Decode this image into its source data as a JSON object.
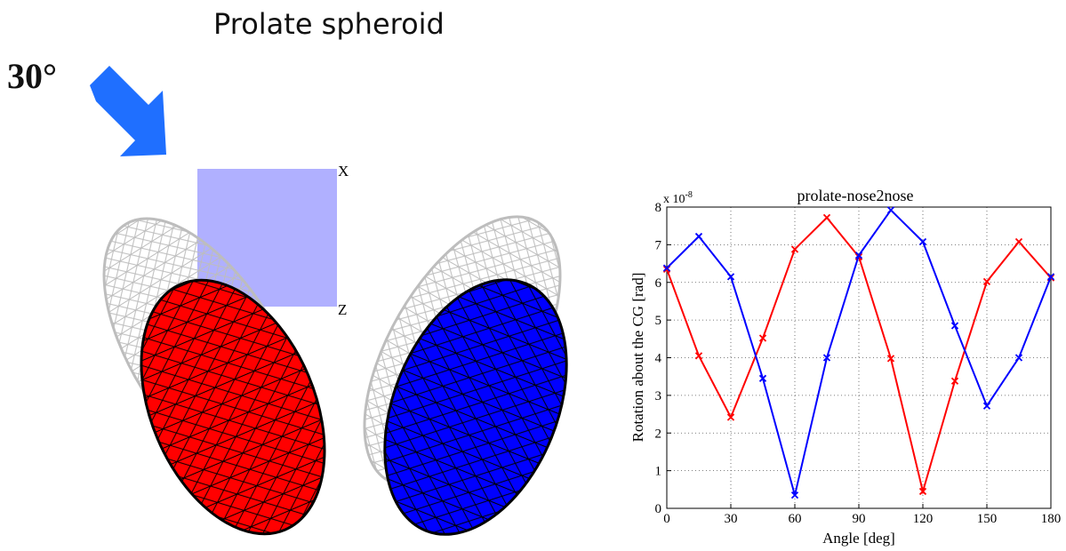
{
  "slide": {
    "title": "Prolate spheroid",
    "angle_label": "30°",
    "plane_label_x": "X",
    "plane_label_z": "Z"
  },
  "illustration": {
    "arrow_color": "#1f6fff",
    "plane_color": "#b0b0ff",
    "left_spheroid_color": "#ff0000",
    "right_spheroid_color": "#0000ff",
    "wireframe_color": "#c0c0c0",
    "mesh_color": "#000000"
  },
  "chart_data": {
    "type": "line",
    "title": "prolate-nose2nose",
    "xlabel": "Angle [deg]",
    "ylabel": "Rotation about the CG [rad]",
    "y_scale_label": "x 10",
    "y_scale_exponent": "-8",
    "xlim": [
      0,
      180
    ],
    "ylim": [
      0,
      8
    ],
    "xticks": [
      0,
      30,
      60,
      90,
      120,
      150,
      180
    ],
    "yticks": [
      0,
      1,
      2,
      3,
      4,
      5,
      6,
      7,
      8
    ],
    "grid": true,
    "x": [
      0,
      15,
      30,
      45,
      60,
      75,
      90,
      105,
      120,
      135,
      150,
      165,
      180
    ],
    "series": [
      {
        "color": "#ff0000",
        "marker": "x",
        "values": [
          6.35,
          4.05,
          2.42,
          4.52,
          6.88,
          7.72,
          6.68,
          3.98,
          0.45,
          3.38,
          6.02,
          7.08,
          6.12
        ]
      },
      {
        "color": "#0000ff",
        "marker": "x",
        "values": [
          6.38,
          7.22,
          6.15,
          3.45,
          0.35,
          4.0,
          6.72,
          7.92,
          7.08,
          4.85,
          2.72,
          4.0,
          6.15
        ]
      }
    ]
  }
}
